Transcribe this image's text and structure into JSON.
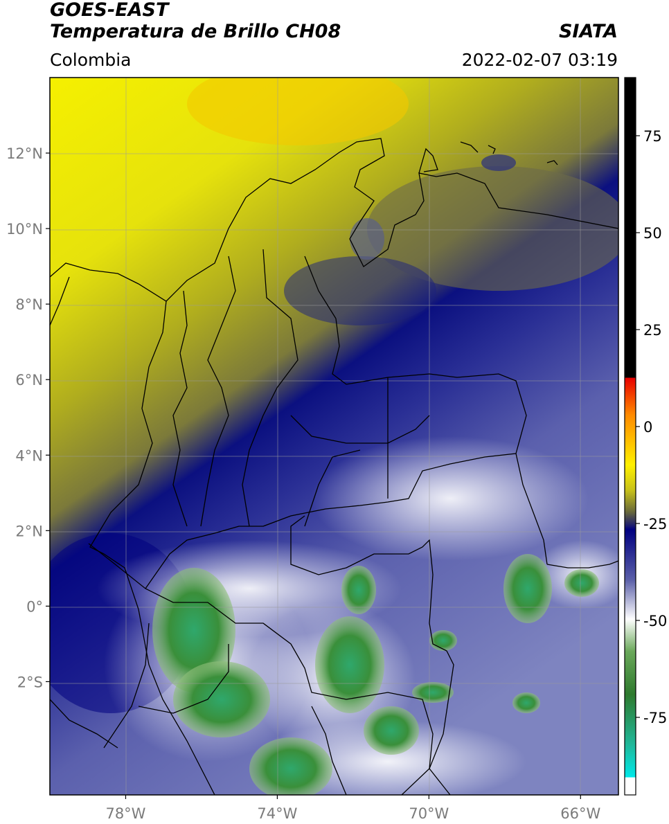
{
  "header": {
    "satellite": "GOES-EAST",
    "product": "Temperatura de Brillo CH08",
    "agency": "SIATA",
    "region": "Colombia",
    "datetime": "2022-02-07 03:19"
  },
  "map": {
    "lon_range": [
      -80,
      -65
    ],
    "lat_range": [
      -5,
      14
    ],
    "lat_ticks": [
      {
        "value": 12,
        "label": "12°N"
      },
      {
        "value": 10,
        "label": "10°N"
      },
      {
        "value": 8,
        "label": "8°N"
      },
      {
        "value": 6,
        "label": "6°N"
      },
      {
        "value": 4,
        "label": "4°N"
      },
      {
        "value": 2,
        "label": "2°N"
      },
      {
        "value": 0,
        "label": "0°"
      },
      {
        "value": -2,
        "label": "2°S"
      }
    ],
    "lon_ticks": [
      {
        "value": -78,
        "label": "78°W"
      },
      {
        "value": -74,
        "label": "74°W"
      },
      {
        "value": -70,
        "label": "70°W"
      },
      {
        "value": -66,
        "label": "66°W"
      }
    ],
    "grid": true
  },
  "colorbar": {
    "range": [
      -95,
      90
    ],
    "ticks": [
      {
        "value": 75,
        "label": "75"
      },
      {
        "value": 50,
        "label": "50"
      },
      {
        "value": 25,
        "label": "25"
      },
      {
        "value": 0,
        "label": "0"
      },
      {
        "value": -25,
        "label": "-25"
      },
      {
        "value": -50,
        "label": "-50"
      },
      {
        "value": -75,
        "label": "-75"
      }
    ],
    "colors": {
      "black": "#000000",
      "red": "#e80000",
      "orange": "#ff9a00",
      "yellow": "#f4f000",
      "olive": "#8e8e2c",
      "dark_blue": "#000080",
      "slate_blue": "#5a5fa8",
      "white": "#ffffff",
      "green": "#2e8b2e",
      "teal": "#1fb89a",
      "cyan": "#00e8e8"
    }
  }
}
